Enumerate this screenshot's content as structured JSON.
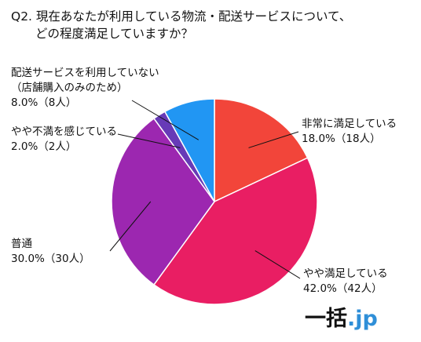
{
  "title": "Q2. 現在あなたが利用している物流・配送サービスについて、\n　　どの程度満足していますか？",
  "logo": {
    "main": "一括",
    "accent": ".jp"
  },
  "chart_data": {
    "type": "pie",
    "title": "Q2. 現在あなたが利用している物流・配送サービスについて、どの程度満足していますか？",
    "slices": [
      {
        "label": "非常に満足している",
        "value": 18.0,
        "value_label": "18.0%（18人）",
        "color": "#f2453a"
      },
      {
        "label": "やや満足している",
        "value": 42.0,
        "value_label": "42.0%（42人）",
        "color": "#e91e63"
      },
      {
        "label": "普通",
        "value": 30.0,
        "value_label": "30.0%（30人）",
        "color": "#9c27b0"
      },
      {
        "label": "やや不満を感じている",
        "value": 2.0,
        "value_label": "2.0%（2人）",
        "color": "#673ab7"
      },
      {
        "label": "配送サービスを利用していない（店舗購入のみのため）",
        "label_lines": [
          "配送サービスを利用していない",
          "（店舗購入のみのため）"
        ],
        "value": 8.0,
        "value_label": "8.0%（8人）",
        "color": "#2196f3"
      }
    ]
  }
}
